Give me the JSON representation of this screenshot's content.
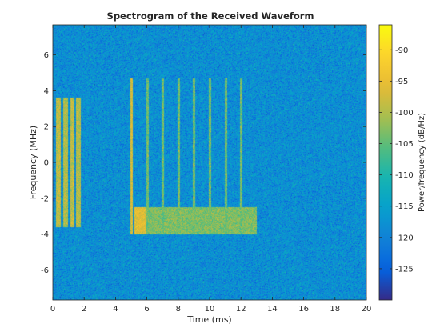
{
  "chart_data": {
    "type": "heatmap",
    "title": "Spectrogram of the Received Waveform",
    "xlabel": "Time (ms)",
    "ylabel": "Frequency (MHz)",
    "colorbar_label": "Power/frequency (dB/Hz)",
    "xlim": [
      0,
      20
    ],
    "ylim": [
      -7.68,
      7.68
    ],
    "clim": [
      -130,
      -86
    ],
    "colormap": "parula",
    "xticks": [
      0,
      2,
      4,
      6,
      8,
      10,
      12,
      14,
      16,
      18,
      20
    ],
    "xtick_labels": [
      "0",
      "2",
      "4",
      "6",
      "8",
      "10",
      "12",
      "14",
      "16",
      "18",
      "20"
    ],
    "yticks": [
      6,
      4,
      2,
      0,
      -2,
      -4,
      -6
    ],
    "ytick_labels": [
      "6",
      "4",
      "2",
      "0",
      "-2",
      "-4",
      "-6"
    ],
    "cticks": [
      -90,
      -95,
      -100,
      -105,
      -110,
      -115,
      -120,
      -125
    ],
    "ctick_labels": [
      "-90",
      "-95",
      "-100",
      "-105",
      "-110",
      "-115",
      "-120",
      "-125"
    ],
    "noise_floor_db": -118,
    "signals": [
      {
        "kind": "burst",
        "t0": 0.2,
        "t1": 0.5,
        "f0": -3.6,
        "f1": 3.6,
        "db": -99
      },
      {
        "kind": "burst",
        "t0": 0.65,
        "t1": 0.95,
        "f0": -3.6,
        "f1": 3.6,
        "db": -100
      },
      {
        "kind": "burst",
        "t0": 1.1,
        "t1": 1.4,
        "f0": -3.6,
        "f1": 3.6,
        "db": -99
      },
      {
        "kind": "burst",
        "t0": 1.5,
        "t1": 1.8,
        "f0": -3.6,
        "f1": 3.6,
        "db": -100
      },
      {
        "kind": "line",
        "t0": 4.95,
        "t1": 5.1,
        "f0": -4.0,
        "f1": 4.7,
        "db": -97
      },
      {
        "kind": "line",
        "t0": 5.95,
        "t1": 6.1,
        "f0": -4.0,
        "f1": 4.7,
        "db": -104
      },
      {
        "kind": "line",
        "t0": 6.95,
        "t1": 7.1,
        "f0": -4.0,
        "f1": 4.7,
        "db": -104
      },
      {
        "kind": "line",
        "t0": 7.95,
        "t1": 8.1,
        "f0": -4.0,
        "f1": 4.7,
        "db": -104
      },
      {
        "kind": "line",
        "t0": 8.95,
        "t1": 9.1,
        "f0": -4.0,
        "f1": 4.7,
        "db": -104
      },
      {
        "kind": "line",
        "t0": 9.95,
        "t1": 10.1,
        "f0": -4.0,
        "f1": 4.7,
        "db": -104
      },
      {
        "kind": "line",
        "t0": 10.95,
        "t1": 11.1,
        "f0": -4.0,
        "f1": 4.7,
        "db": -104
      },
      {
        "kind": "line",
        "t0": 11.95,
        "t1": 12.1,
        "f0": -4.0,
        "f1": 4.7,
        "db": -104
      },
      {
        "kind": "block",
        "t0": 5.2,
        "t1": 5.95,
        "f0": -4.0,
        "f1": -2.5,
        "db": -96
      },
      {
        "kind": "block",
        "t0": 6.1,
        "t1": 6.95,
        "f0": -4.0,
        "f1": -2.5,
        "db": -103
      },
      {
        "kind": "block",
        "t0": 7.1,
        "t1": 7.95,
        "f0": -4.0,
        "f1": -2.5,
        "db": -103
      },
      {
        "kind": "block",
        "t0": 8.1,
        "t1": 8.95,
        "f0": -4.0,
        "f1": -2.5,
        "db": -103
      },
      {
        "kind": "block",
        "t0": 9.1,
        "t1": 9.95,
        "f0": -4.0,
        "f1": -2.5,
        "db": -103
      },
      {
        "kind": "block",
        "t0": 10.1,
        "t1": 10.95,
        "f0": -4.0,
        "f1": -2.5,
        "db": -103
      },
      {
        "kind": "block",
        "t0": 11.1,
        "t1": 11.95,
        "f0": -4.0,
        "f1": -2.5,
        "db": -103
      },
      {
        "kind": "block",
        "t0": 12.1,
        "t1": 13.0,
        "f0": -4.0,
        "f1": -2.5,
        "db": -103
      }
    ]
  }
}
